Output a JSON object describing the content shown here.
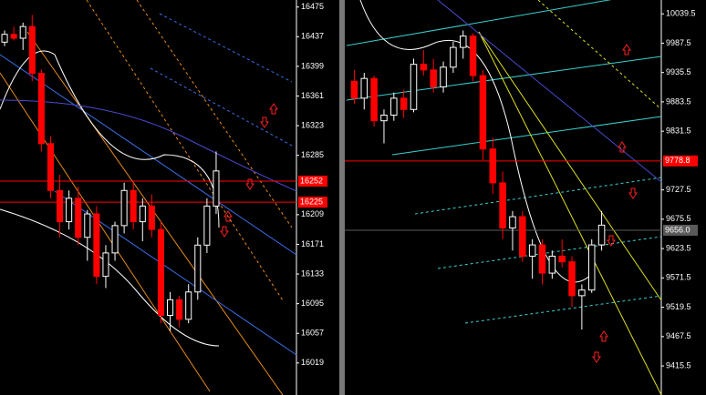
{
  "chart_data": [
    {
      "type": "candlestick",
      "open": [
        16430,
        16440,
        16435,
        16450,
        16390,
        16300,
        16240,
        16200,
        16230,
        16180,
        16210,
        16130,
        16160,
        16195,
        16240,
        16200,
        16220,
        16190,
        16080,
        16100,
        16075,
        16110,
        16170,
        16220
      ],
      "high": [
        16445,
        16450,
        16455,
        16465,
        16395,
        16310,
        16260,
        16240,
        16245,
        16215,
        16220,
        16170,
        16200,
        16250,
        16250,
        16230,
        16235,
        16200,
        16110,
        16105,
        16120,
        16180,
        16230,
        16290
      ],
      "low": [
        16425,
        16432,
        16420,
        16380,
        16290,
        16230,
        16180,
        16190,
        16170,
        16150,
        16120,
        16115,
        16150,
        16185,
        16190,
        16175,
        16180,
        16070,
        16060,
        16065,
        16070,
        16100,
        16160,
        16210
      ],
      "close": [
        16440,
        16435,
        16450,
        16390,
        16300,
        16240,
        16200,
        16230,
        16180,
        16210,
        16130,
        16160,
        16195,
        16240,
        16200,
        16220,
        16190,
        16080,
        16100,
        16075,
        16110,
        16170,
        16220,
        16265
      ],
      "up_color": "#ffffff",
      "down_color": "#ff0000",
      "ylim": [
        15978,
        16484
      ],
      "yticks": [
        16475,
        16437,
        16399,
        16361,
        16323,
        16285,
        16209,
        16171,
        16133,
        16095,
        16057,
        16019
      ],
      "price_lines": [
        {
          "value": 16252,
          "color": "#ff0000"
        },
        {
          "value": 16225,
          "color": "#ff0000"
        }
      ]
    },
    {
      "type": "candlestick",
      "open": [
        9920,
        9890,
        9925,
        9850,
        9860,
        9890,
        9870,
        9950,
        9940,
        9910,
        9945,
        9980,
        10000,
        9930,
        9800,
        9740,
        9660,
        9680,
        9610,
        9630,
        9580,
        9610,
        9600,
        9540,
        9550,
        9630
      ],
      "high": [
        9940,
        9935,
        9930,
        9870,
        9900,
        9905,
        9960,
        9975,
        9960,
        9955,
        9990,
        10010,
        10005,
        9940,
        9820,
        9760,
        9690,
        9690,
        9640,
        9640,
        9620,
        9640,
        9610,
        9560,
        9640,
        9690
      ],
      "low": [
        9880,
        9870,
        9840,
        9810,
        9850,
        9855,
        9865,
        9930,
        9900,
        9900,
        9935,
        9960,
        9920,
        9780,
        9720,
        9640,
        9620,
        9600,
        9570,
        9560,
        9570,
        9590,
        9520,
        9480,
        9545,
        9620
      ],
      "close": [
        9890,
        9925,
        9850,
        9860,
        9890,
        9870,
        9950,
        9940,
        9910,
        9945,
        9980,
        10000,
        9930,
        9800,
        9740,
        9660,
        9680,
        9610,
        9630,
        9580,
        9610,
        9600,
        9540,
        9550,
        9630,
        9665
      ],
      "up_color": "#ffffff",
      "down_color": "#ff0000",
      "ylim": [
        9364,
        10064
      ],
      "yticks": [
        10039.5,
        9987.5,
        9935.5,
        9883.5,
        9831.5,
        9727.5,
        9675.5,
        9623.5,
        9571.5,
        9519.5,
        9467.5,
        9415.5
      ],
      "price_lines": [
        {
          "value": 9778.8,
          "color": "#ff0000"
        },
        {
          "value": 9656,
          "label": "9656.0",
          "color": "#5a5a5a"
        }
      ]
    }
  ]
}
